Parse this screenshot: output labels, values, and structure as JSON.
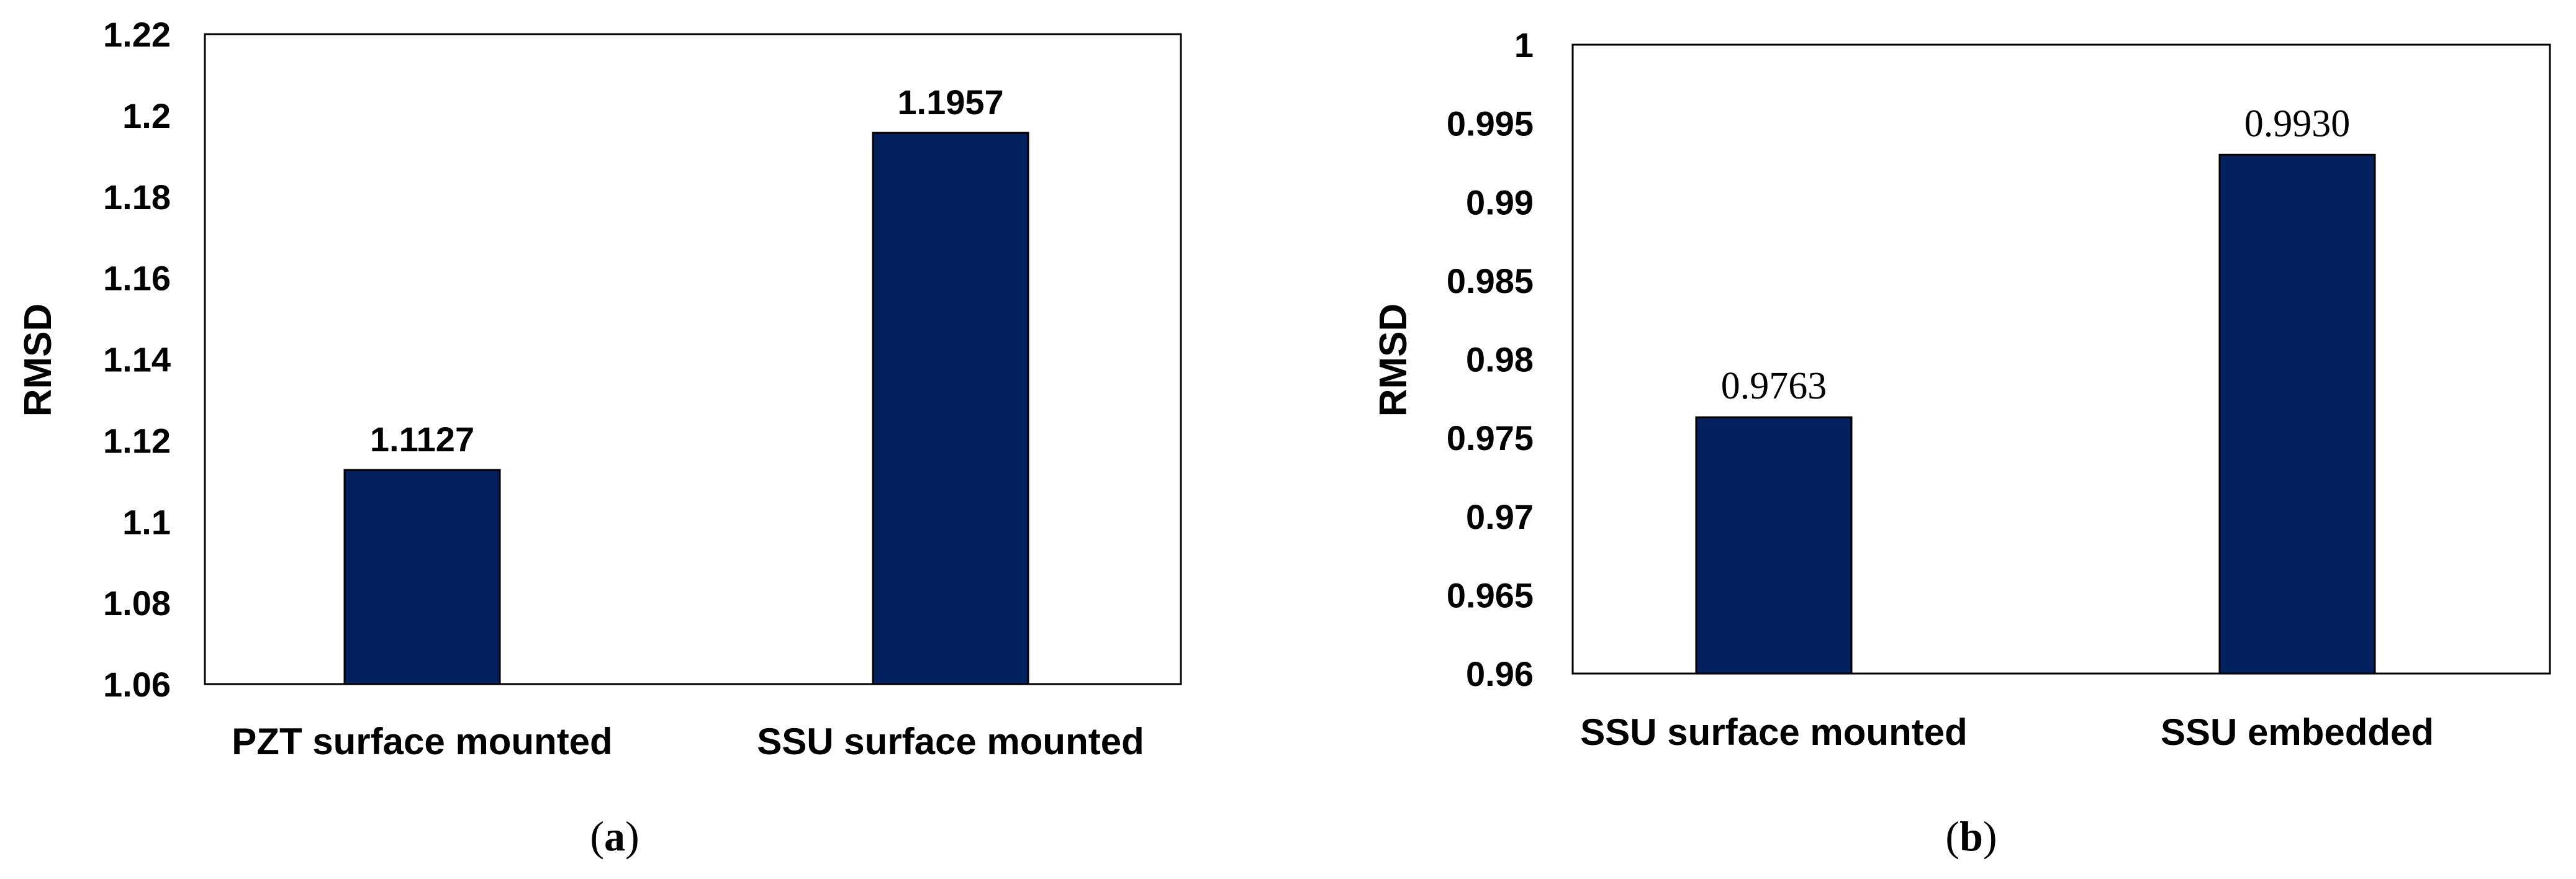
{
  "chart_data": [
    {
      "type": "bar",
      "categories": [
        "PZT surface mounted",
        "SSU surface mounted"
      ],
      "values": [
        1.1127,
        1.1957
      ],
      "data_labels": [
        "1.1127",
        "1.1957"
      ],
      "ylabel": "RMSD",
      "ylim": [
        1.06,
        1.22
      ],
      "yticks": [
        "1.06",
        "1.08",
        "1.1",
        "1.12",
        "1.14",
        "1.16",
        "1.18",
        "1.2",
        "1.22"
      ],
      "grid": false,
      "legend": "none",
      "bar_color": "#03215e",
      "panel_label": {
        "open": "(",
        "letter": "a",
        "close": ")"
      }
    },
    {
      "type": "bar",
      "categories": [
        "SSU surface mounted",
        "SSU embedded"
      ],
      "values": [
        0.9763,
        0.993
      ],
      "data_labels": [
        "0.9763",
        "0.9930"
      ],
      "ylabel": "RMSD",
      "ylim": [
        0.96,
        1.0
      ],
      "yticks": [
        "0.96",
        "0.965",
        "0.97",
        "0.975",
        "0.98",
        "0.985",
        "0.99",
        "0.995",
        "1"
      ],
      "grid": false,
      "legend": "none",
      "bar_color": "#03215e",
      "panel_label": {
        "open": "(",
        "letter": "b",
        "close": ")"
      }
    }
  ]
}
